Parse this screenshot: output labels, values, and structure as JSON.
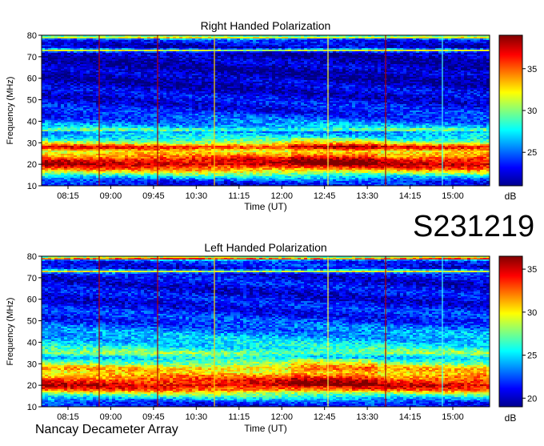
{
  "header": {
    "observation_code": "S231219",
    "instrument": "Nancay Decameter Array"
  },
  "chart_data": [
    {
      "type": "heatmap",
      "title": "Right Handed Polarization",
      "xlabel": "Time (UT)",
      "ylabel": "Frequency (MHz)",
      "x_ticks": [
        "08:15",
        "09:00",
        "09:45",
        "10:30",
        "11:15",
        "12:00",
        "12:45",
        "13:30",
        "14:15",
        "15:00"
      ],
      "y_ticks": [
        "10",
        "20",
        "30",
        "40",
        "50",
        "60",
        "70",
        "80"
      ],
      "ylim": [
        10,
        80
      ],
      "colorbar": {
        "label": "dB",
        "ticks": [
          "25",
          "30",
          "35"
        ],
        "range": [
          21,
          39
        ],
        "colormap": "jet"
      },
      "intensity_profile_db": [
        {
          "freq_mhz": 80,
          "db": 27
        },
        {
          "freq_mhz": 79,
          "db": 33
        },
        {
          "freq_mhz": 78,
          "db": 24
        },
        {
          "freq_mhz": 74,
          "db": 22
        },
        {
          "freq_mhz": 73,
          "db": 32
        },
        {
          "freq_mhz": 72,
          "db": 22
        },
        {
          "freq_mhz": 60,
          "db": 22
        },
        {
          "freq_mhz": 50,
          "db": 23
        },
        {
          "freq_mhz": 45,
          "db": 23.5
        },
        {
          "freq_mhz": 40,
          "db": 25
        },
        {
          "freq_mhz": 37,
          "db": 27
        },
        {
          "freq_mhz": 36,
          "db": 30
        },
        {
          "freq_mhz": 35,
          "db": 26
        },
        {
          "freq_mhz": 32,
          "db": 28
        },
        {
          "freq_mhz": 30,
          "db": 31
        },
        {
          "freq_mhz": 28,
          "db": 37
        },
        {
          "freq_mhz": 26,
          "db": 32
        },
        {
          "freq_mhz": 24,
          "db": 34
        },
        {
          "freq_mhz": 22,
          "db": 37
        },
        {
          "freq_mhz": 20,
          "db": 38
        },
        {
          "freq_mhz": 18,
          "db": 35
        },
        {
          "freq_mhz": 16,
          "db": 31
        },
        {
          "freq_mhz": 14,
          "db": 27
        },
        {
          "freq_mhz": 12,
          "db": 24
        },
        {
          "freq_mhz": 10,
          "db": 23
        }
      ]
    },
    {
      "type": "heatmap",
      "title": "Left Handed Polarization",
      "xlabel": "Time (UT)",
      "ylabel": "Frequency (MHz)",
      "x_ticks": [
        "08:15",
        "09:00",
        "09:45",
        "10:30",
        "11:15",
        "12:00",
        "12:45",
        "13:30",
        "14:15",
        "15:00"
      ],
      "y_ticks": [
        "10",
        "20",
        "30",
        "40",
        "50",
        "60",
        "70",
        "80"
      ],
      "ylim": [
        10,
        80
      ],
      "colorbar": {
        "label": "dB",
        "ticks": [
          "20",
          "25",
          "30",
          "35"
        ],
        "range": [
          19,
          36.5
        ],
        "colormap": "jet"
      },
      "intensity_profile_db": [
        {
          "freq_mhz": 80,
          "db": 25
        },
        {
          "freq_mhz": 79,
          "db": 34
        },
        {
          "freq_mhz": 78,
          "db": 22
        },
        {
          "freq_mhz": 74,
          "db": 21
        },
        {
          "freq_mhz": 73,
          "db": 30
        },
        {
          "freq_mhz": 72,
          "db": 21
        },
        {
          "freq_mhz": 60,
          "db": 21
        },
        {
          "freq_mhz": 50,
          "db": 22
        },
        {
          "freq_mhz": 45,
          "db": 23.5
        },
        {
          "freq_mhz": 40,
          "db": 25
        },
        {
          "freq_mhz": 37,
          "db": 26
        },
        {
          "freq_mhz": 35,
          "db": 28
        },
        {
          "freq_mhz": 33,
          "db": 25
        },
        {
          "freq_mhz": 30,
          "db": 28
        },
        {
          "freq_mhz": 28,
          "db": 31
        },
        {
          "freq_mhz": 26,
          "db": 30
        },
        {
          "freq_mhz": 24,
          "db": 32
        },
        {
          "freq_mhz": 22,
          "db": 34
        },
        {
          "freq_mhz": 20,
          "db": 35
        },
        {
          "freq_mhz": 18,
          "db": 33
        },
        {
          "freq_mhz": 16,
          "db": 28
        },
        {
          "freq_mhz": 14,
          "db": 25
        },
        {
          "freq_mhz": 12,
          "db": 22
        },
        {
          "freq_mhz": 10,
          "db": 21
        }
      ]
    }
  ]
}
